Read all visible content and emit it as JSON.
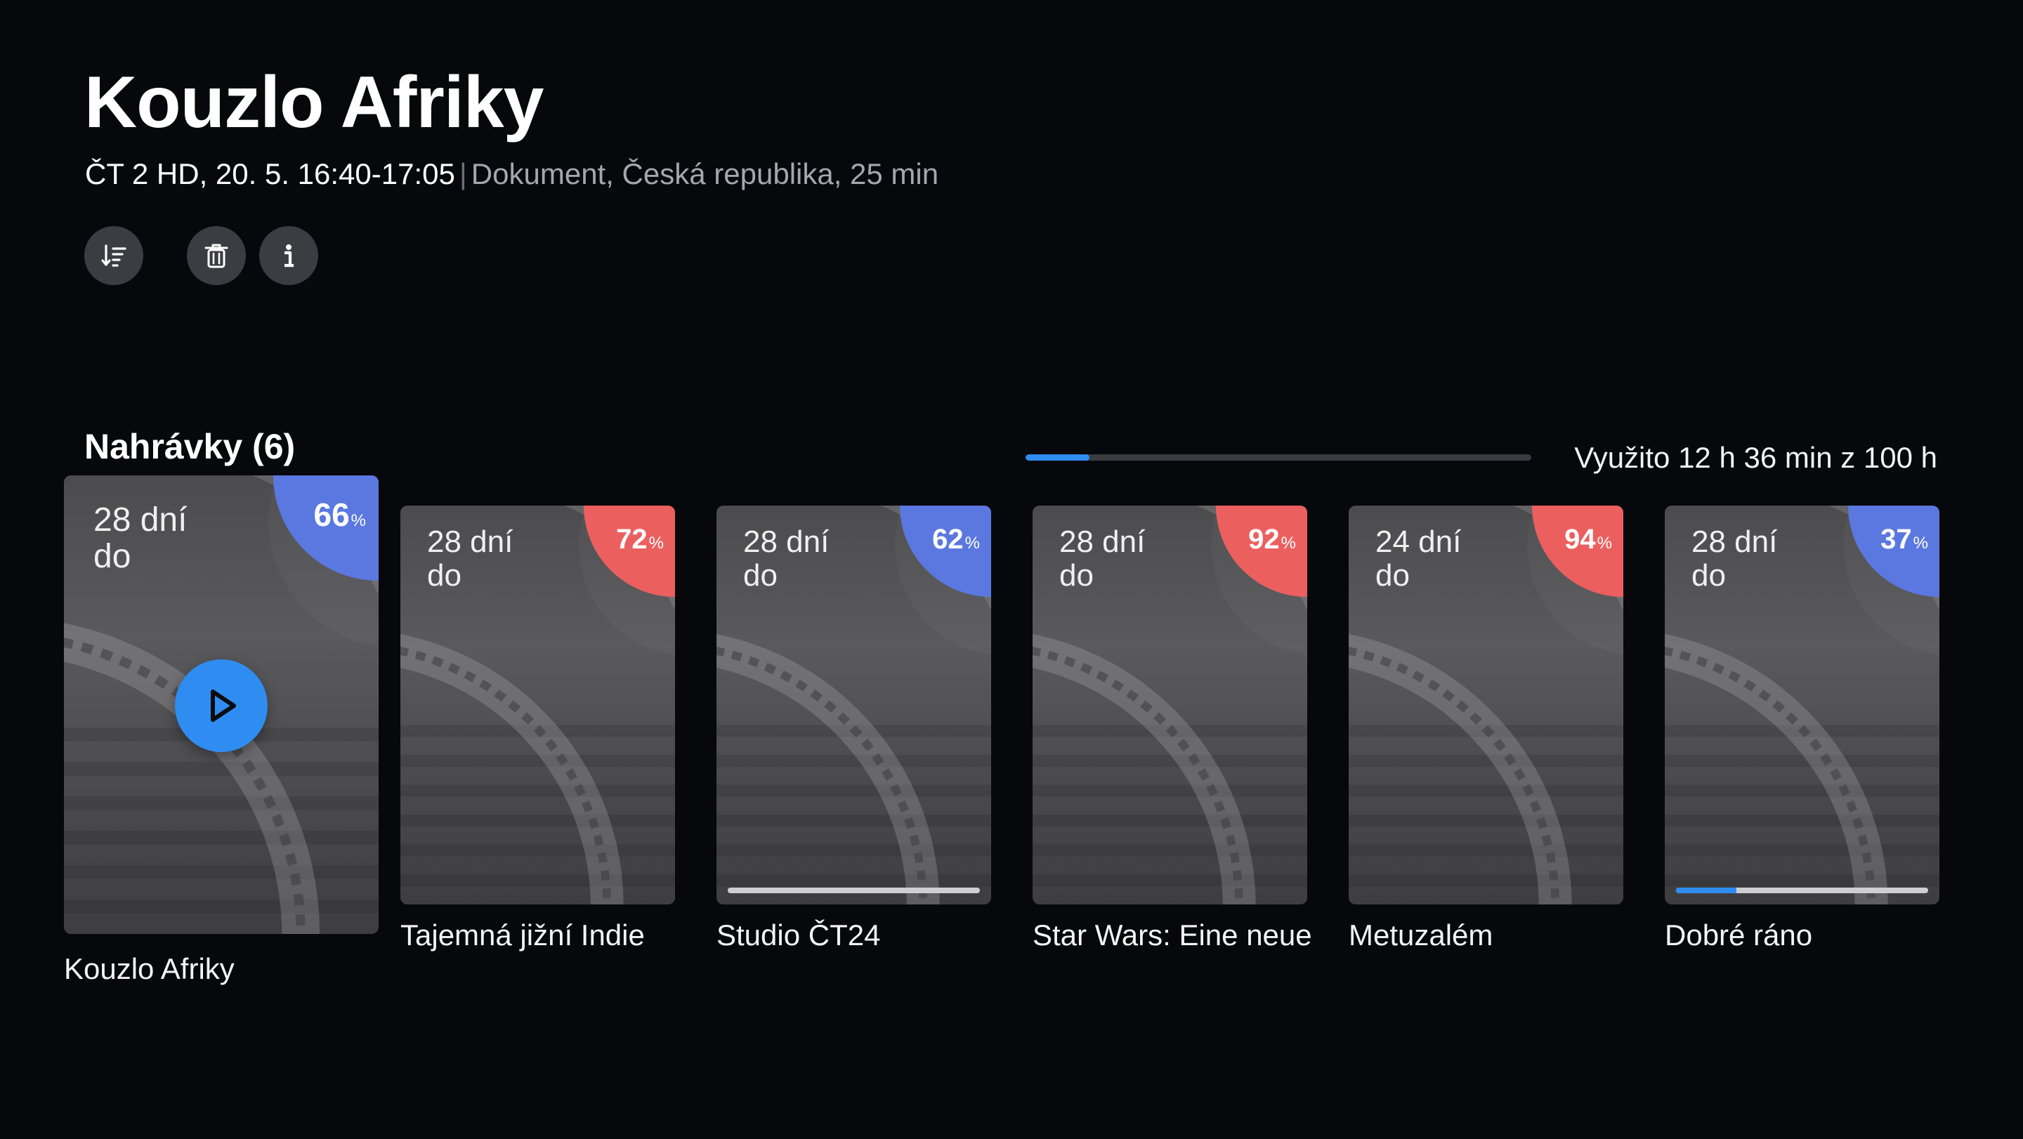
{
  "program": {
    "title": "Kouzlo Afriky",
    "channel_time": "ČT 2 HD, 20. 5. 16:40-17:05",
    "separator": "|",
    "details": "Dokument, Česká republika, 25 min"
  },
  "actions": {
    "sort_icon": "sort-icon",
    "delete_icon": "trash-icon",
    "info_icon": "info-icon"
  },
  "recordings": {
    "section_title": "Nahrávky (6)",
    "usage_text": "Využito 12 h 36 min z 100 h",
    "usage_fraction": 0.126,
    "items": [
      {
        "days": "28 dní\ndo",
        "percent": "66",
        "percent_unit": "%",
        "badge_color": "#5b78e0",
        "name": "Kouzlo Afriky",
        "watched": 0
      },
      {
        "days": "28 dní\ndo",
        "percent": "72",
        "percent_unit": "%",
        "badge_color": "#ec5f5f",
        "name": "Tajemná jižní Indie",
        "watched": 0
      },
      {
        "days": "28 dní\ndo",
        "percent": "62",
        "percent_unit": "%",
        "badge_color": "#5b78e0",
        "name": "Studio ČT24",
        "watched": 1.0
      },
      {
        "days": "28 dní\ndo",
        "percent": "92",
        "percent_unit": "%",
        "badge_color": "#ec5f5f",
        "name": "Star Wars: Eine neue",
        "watched": 0
      },
      {
        "days": "24 dní\ndo",
        "percent": "94",
        "percent_unit": "%",
        "badge_color": "#ec5f5f",
        "name": "Metuzalém",
        "watched": 0
      },
      {
        "days": "28 dní\ndo",
        "percent": "37",
        "percent_unit": "%",
        "badge_color": "#5b78e0",
        "name": "Dobré ráno",
        "watched": 0.24
      }
    ]
  },
  "colors": {
    "accent": "#2f8cf0",
    "background": "#07080b"
  }
}
